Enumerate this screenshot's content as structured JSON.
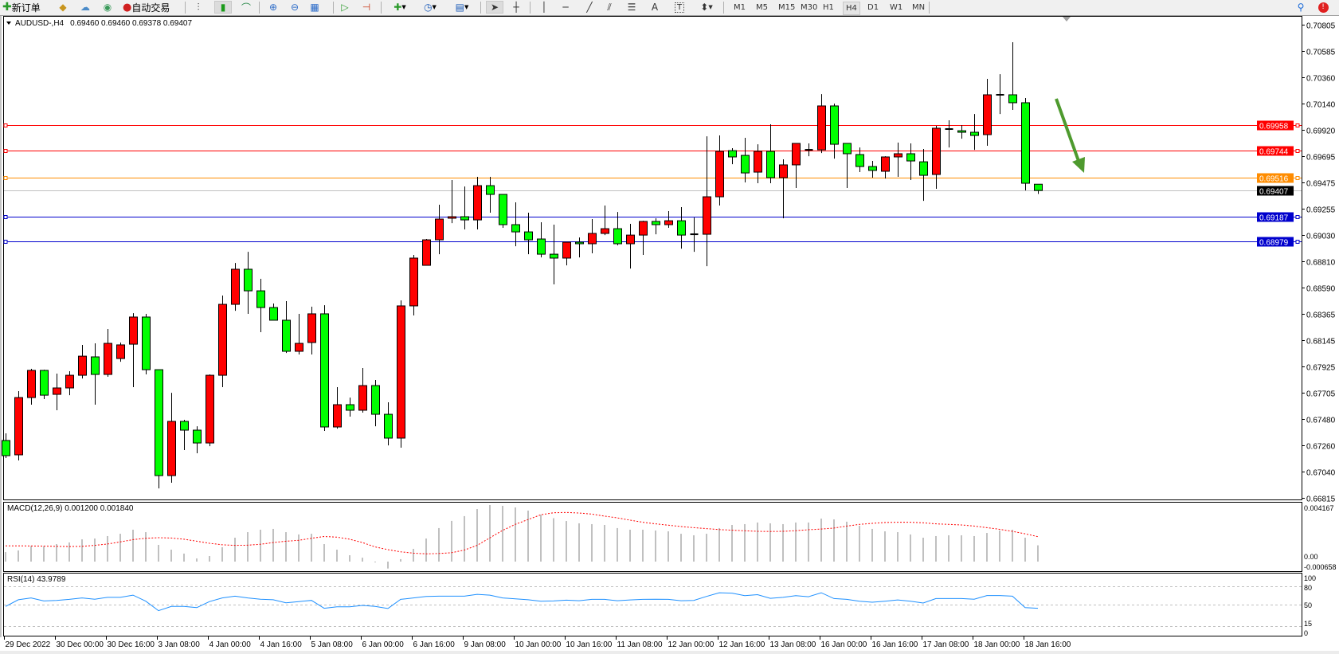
{
  "toolbar": {
    "new_order_label": "新订单",
    "auto_trading_label": "自动交易",
    "timeframes": [
      "M1",
      "M5",
      "M15",
      "M30",
      "H1",
      "H4",
      "D1",
      "W1",
      "MN"
    ],
    "active_timeframe": "H4"
  },
  "header": {
    "symbol": "AUDUSD-,H4",
    "ohlc": "0.69460 0.69460 0.69378 0.69407"
  },
  "colors": {
    "bull": "#ff0000",
    "bear": "#00ff00",
    "macd_hist": "#c0c0c0",
    "signal": "#ff0000",
    "rsi": "#1e90ff",
    "arrow": "#4e9a2e"
  },
  "price_axis": [
    "0.70805",
    "0.70585",
    "0.70360",
    "0.70140",
    "0.69920",
    "0.69695",
    "0.69475",
    "0.69255",
    "0.69030",
    "0.68810",
    "0.68590",
    "0.68365",
    "0.68145",
    "0.67925",
    "0.67705",
    "0.67480",
    "0.67260",
    "0.67040",
    "0.66815"
  ],
  "levels": [
    {
      "price": "0.69958",
      "color": "#ff0000",
      "style": "line"
    },
    {
      "price": "0.69744",
      "color": "#ff0000",
      "style": "line"
    },
    {
      "price": "0.69516",
      "color": "#ff8c00",
      "style": "line"
    },
    {
      "price": "0.69407",
      "color": "#000000",
      "style": "bid"
    },
    {
      "price": "0.69187",
      "color": "#0000cd",
      "style": "line"
    },
    {
      "price": "0.68979",
      "color": "#0000cd",
      "style": "line"
    }
  ],
  "chart_data": {
    "type": "candlestick",
    "ohlc_order": [
      "open",
      "high",
      "low",
      "close"
    ],
    "candles": [
      [
        0.67299,
        0.67359,
        0.67151,
        0.67171
      ],
      [
        0.67178,
        0.67715,
        0.67131,
        0.67661
      ],
      [
        0.67661,
        0.67903,
        0.67601,
        0.6789
      ],
      [
        0.6789,
        0.67896,
        0.67648,
        0.67681
      ],
      [
        0.67688,
        0.67863,
        0.67554,
        0.67742
      ],
      [
        0.67742,
        0.67883,
        0.67681,
        0.67849
      ],
      [
        0.67849,
        0.68105,
        0.67822,
        0.6801
      ],
      [
        0.68004,
        0.68118,
        0.67601,
        0.67856
      ],
      [
        0.67856,
        0.68239,
        0.67836,
        0.68118
      ],
      [
        0.6799,
        0.68125,
        0.67963,
        0.68105
      ],
      [
        0.68111,
        0.68373,
        0.67749,
        0.6834
      ],
      [
        0.6834,
        0.68367,
        0.67856,
        0.67896
      ],
      [
        0.67896,
        0.67896,
        0.66895,
        0.67003
      ],
      [
        0.67003,
        0.67701,
        0.66943,
        0.6746
      ],
      [
        0.6746,
        0.67473,
        0.67218,
        0.67386
      ],
      [
        0.67386,
        0.67419,
        0.67191,
        0.67278
      ],
      [
        0.67278,
        0.67856,
        0.67251,
        0.67849
      ],
      [
        0.67849,
        0.68521,
        0.67749,
        0.68447
      ],
      [
        0.68447,
        0.68796,
        0.68393,
        0.68743
      ],
      [
        0.68743,
        0.6889,
        0.68367,
        0.68561
      ],
      [
        0.68561,
        0.68662,
        0.68212,
        0.6842
      ],
      [
        0.6842,
        0.68454,
        0.68313,
        0.68313
      ],
      [
        0.68313,
        0.68474,
        0.68037,
        0.68051
      ],
      [
        0.68051,
        0.68367,
        0.68024,
        0.68118
      ],
      [
        0.68125,
        0.68427,
        0.68024,
        0.68367
      ],
      [
        0.68367,
        0.6844,
        0.67379,
        0.67413
      ],
      [
        0.67413,
        0.67749,
        0.67399,
        0.67601
      ],
      [
        0.67601,
        0.67661,
        0.675,
        0.67554
      ],
      [
        0.67554,
        0.6791,
        0.67534,
        0.67762
      ],
      [
        0.67762,
        0.67809,
        0.67419,
        0.6752
      ],
      [
        0.6752,
        0.67621,
        0.67258,
        0.67319
      ],
      [
        0.67319,
        0.6848,
        0.67238,
        0.68434
      ],
      [
        0.68434,
        0.68864,
        0.68353,
        0.68837
      ],
      [
        0.68776,
        0.68998,
        0.68776,
        0.68991
      ],
      [
        0.68991,
        0.69287,
        0.6887,
        0.69166
      ],
      [
        0.69173,
        0.69495,
        0.69132,
        0.69186
      ],
      [
        0.69186,
        0.69441,
        0.69079,
        0.69159
      ],
      [
        0.69159,
        0.69522,
        0.69079,
        0.69448
      ],
      [
        0.69448,
        0.69522,
        0.6922,
        0.69374
      ],
      [
        0.69374,
        0.69374,
        0.69092,
        0.69119
      ],
      [
        0.69119,
        0.69307,
        0.68937,
        0.69058
      ],
      [
        0.69058,
        0.6922,
        0.6887,
        0.68991
      ],
      [
        0.68998,
        0.69139,
        0.68843,
        0.6887
      ],
      [
        0.6887,
        0.69119,
        0.68615,
        0.68837
      ],
      [
        0.68837,
        0.68971,
        0.68776,
        0.68971
      ],
      [
        0.68971,
        0.69011,
        0.68843,
        0.68958
      ],
      [
        0.68958,
        0.69166,
        0.68877,
        0.69045
      ],
      [
        0.69045,
        0.6928,
        0.69031,
        0.69085
      ],
      [
        0.69085,
        0.69226,
        0.68944,
        0.68958
      ],
      [
        0.68958,
        0.69126,
        0.68749,
        0.69031
      ],
      [
        0.69031,
        0.69152,
        0.68864,
        0.69146
      ],
      [
        0.69146,
        0.69173,
        0.69038,
        0.69119
      ],
      [
        0.69119,
        0.69233,
        0.69092,
        0.69152
      ],
      [
        0.69152,
        0.69267,
        0.68917,
        0.69031
      ],
      [
        0.69038,
        0.69179,
        0.6889,
        0.69038
      ],
      [
        0.69038,
        0.69864,
        0.68769,
        0.69354
      ],
      [
        0.69354,
        0.69871,
        0.6928,
        0.69737
      ],
      [
        0.69743,
        0.69764,
        0.69629,
        0.6969
      ],
      [
        0.69703,
        0.69851,
        0.69475,
        0.69555
      ],
      [
        0.69562,
        0.69797,
        0.69468,
        0.69737
      ],
      [
        0.69737,
        0.69965,
        0.69468,
        0.69515
      ],
      [
        0.69515,
        0.6967,
        0.69173,
        0.69623
      ],
      [
        0.69623,
        0.69804,
        0.69428,
        0.69804
      ],
      [
        0.6975,
        0.69804,
        0.69696,
        0.6975
      ],
      [
        0.6975,
        0.7022,
        0.69723,
        0.7012
      ],
      [
        0.7012,
        0.7014,
        0.69676,
        0.69797
      ],
      [
        0.69804,
        0.69804,
        0.69428,
        0.69717
      ],
      [
        0.6971,
        0.6977,
        0.69562,
        0.69609
      ],
      [
        0.69609,
        0.69656,
        0.69515,
        0.69576
      ],
      [
        0.69569,
        0.69696,
        0.69508,
        0.6969
      ],
      [
        0.6969,
        0.69811,
        0.69522,
        0.69717
      ],
      [
        0.69717,
        0.69804,
        0.69495,
        0.69656
      ],
      [
        0.69649,
        0.69757,
        0.6932,
        0.69535
      ],
      [
        0.69542,
        0.69952,
        0.69421,
        0.69932
      ],
      [
        0.69925,
        0.69999,
        0.6977,
        0.69925
      ],
      [
        0.69911,
        0.69958,
        0.69844,
        0.69898
      ],
      [
        0.69898,
        0.70052,
        0.6975,
        0.69871
      ],
      [
        0.69878,
        0.70348,
        0.69784,
        0.70214
      ],
      [
        0.70214,
        0.70388,
        0.70052,
        0.70214
      ],
      [
        0.70214,
        0.70657,
        0.70086,
        0.70147
      ],
      [
        0.70147,
        0.70187,
        0.69408,
        0.69468
      ],
      [
        0.6946,
        0.6946,
        0.69378,
        0.69407
      ]
    ],
    "price_range": [
      0.66815,
      0.70805
    ],
    "time_labels": [
      {
        "label": "29 Dec 2022",
        "bar": 0
      },
      {
        "label": "30 Dec 00:00",
        "bar": 4
      },
      {
        "label": "30 Dec 16:00",
        "bar": 8
      },
      {
        "label": "3 Jan 08:00",
        "bar": 12
      },
      {
        "label": "4 Jan 00:00",
        "bar": 16
      },
      {
        "label": "4 Jan 16:00",
        "bar": 20
      },
      {
        "label": "5 Jan 08:00",
        "bar": 24
      },
      {
        "label": "6 Jan 00:00",
        "bar": 28
      },
      {
        "label": "6 Jan 16:00",
        "bar": 32
      },
      {
        "label": "9 Jan 08:00",
        "bar": 36
      },
      {
        "label": "10 Jan 00:00",
        "bar": 40
      },
      {
        "label": "10 Jan 16:00",
        "bar": 44
      },
      {
        "label": "11 Jan 08:00",
        "bar": 48
      },
      {
        "label": "12 Jan 00:00",
        "bar": 52
      },
      {
        "label": "12 Jan 16:00",
        "bar": 56
      },
      {
        "label": "13 Jan 08:00",
        "bar": 60
      },
      {
        "label": "16 Jan 00:00",
        "bar": 64
      },
      {
        "label": "16 Jan 16:00",
        "bar": 68
      },
      {
        "label": "17 Jan 08:00",
        "bar": 72
      },
      {
        "label": "18 Jan 00:00",
        "bar": 76
      },
      {
        "label": "18 Jan 16:00",
        "bar": 80
      }
    ],
    "annotation": "down-arrow",
    "macd": {
      "label": "MACD(12,26,9) 0.001200 0.001840",
      "axis": [
        "0.004167",
        "0.00",
        "-0.000658"
      ],
      "histogram": [
        0.0007,
        0.00082,
        0.00115,
        0.00115,
        0.00129,
        0.00141,
        0.00164,
        0.0017,
        0.00188,
        0.00205,
        0.00235,
        0.00217,
        0.00123,
        0.00088,
        0.00059,
        0.00023,
        0.00041,
        0.00106,
        0.00176,
        0.00217,
        0.00235,
        0.00241,
        0.00217,
        0.002,
        0.00205,
        0.00129,
        0.00088,
        0.00047,
        0.00029,
        -2e-05,
        -0.00051,
        0.00018,
        0.00094,
        0.0017,
        0.00247,
        0.003,
        0.00335,
        0.00387,
        0.00417,
        0.00411,
        0.00399,
        0.00376,
        0.00346,
        0.0032,
        0.00299,
        0.00282,
        0.00276,
        0.0027,
        0.00247,
        0.00235,
        0.00235,
        0.00229,
        0.00223,
        0.00205,
        0.00194,
        0.00205,
        0.00247,
        0.0027,
        0.00276,
        0.00288,
        0.00282,
        0.00276,
        0.00288,
        0.00288,
        0.00317,
        0.00311,
        0.00294,
        0.00264,
        0.00241,
        0.00223,
        0.00217,
        0.002,
        0.00176,
        0.00188,
        0.00194,
        0.00194,
        0.00188,
        0.00211,
        0.00229,
        0.00235,
        0.00176,
        0.0012
      ],
      "signal": [
        0.00116,
        0.00116,
        0.00115,
        0.00114,
        0.00112,
        0.00111,
        0.00112,
        0.0012,
        0.0013,
        0.00145,
        0.00162,
        0.00172,
        0.00176,
        0.00174,
        0.00165,
        0.0015,
        0.00135,
        0.00124,
        0.0012,
        0.00121,
        0.00128,
        0.0014,
        0.0015,
        0.00157,
        0.00172,
        0.00185,
        0.0018,
        0.00165,
        0.0014,
        0.00108,
        0.00088,
        0.00072,
        0.00062,
        0.00057,
        0.0006,
        0.00066,
        0.00085,
        0.0012,
        0.00175,
        0.0023,
        0.00275,
        0.0031,
        0.00345,
        0.0036,
        0.00362,
        0.00358,
        0.0035,
        0.00335,
        0.00322,
        0.00305,
        0.0029,
        0.00278,
        0.00268,
        0.00258,
        0.0025,
        0.00243,
        0.00236,
        0.00231,
        0.00227,
        0.00223,
        0.00222,
        0.00223,
        0.00228,
        0.00235,
        0.0024,
        0.00247,
        0.00262,
        0.00274,
        0.00282,
        0.00288,
        0.0029,
        0.0029,
        0.00286,
        0.00278,
        0.00274,
        0.0027,
        0.00262,
        0.0025,
        0.00238,
        0.00223,
        0.00205,
        0.00184
      ]
    },
    "rsi": {
      "label": "RSI(14) 43.9789",
      "axis": [
        "100",
        "80",
        "50",
        "15",
        "0"
      ],
      "levels": [
        80,
        50,
        15
      ],
      "values": [
        47,
        58,
        61,
        56,
        57,
        58.7,
        61,
        59,
        62,
        62,
        65.6,
        55.6,
        40,
        47,
        47,
        45,
        55,
        61,
        64,
        61,
        59,
        58,
        53,
        55,
        57,
        44,
        46.5,
        46.5,
        48.7,
        47,
        43.5,
        58.7,
        61,
        63.5,
        64,
        64,
        64,
        67,
        65.6,
        61,
        59.6,
        58,
        55.6,
        56,
        57.4,
        56.5,
        58.7,
        58.7,
        56.5,
        57.8,
        58.7,
        59,
        58.7,
        56.5,
        57,
        63.5,
        69.6,
        69,
        64.8,
        66.5,
        60.4,
        62,
        64.8,
        63,
        69.6,
        60,
        58.7,
        55.6,
        54,
        55.6,
        57.8,
        55.6,
        52.6,
        60,
        60,
        60,
        59,
        65,
        65,
        64,
        45,
        43.98
      ]
    }
  }
}
